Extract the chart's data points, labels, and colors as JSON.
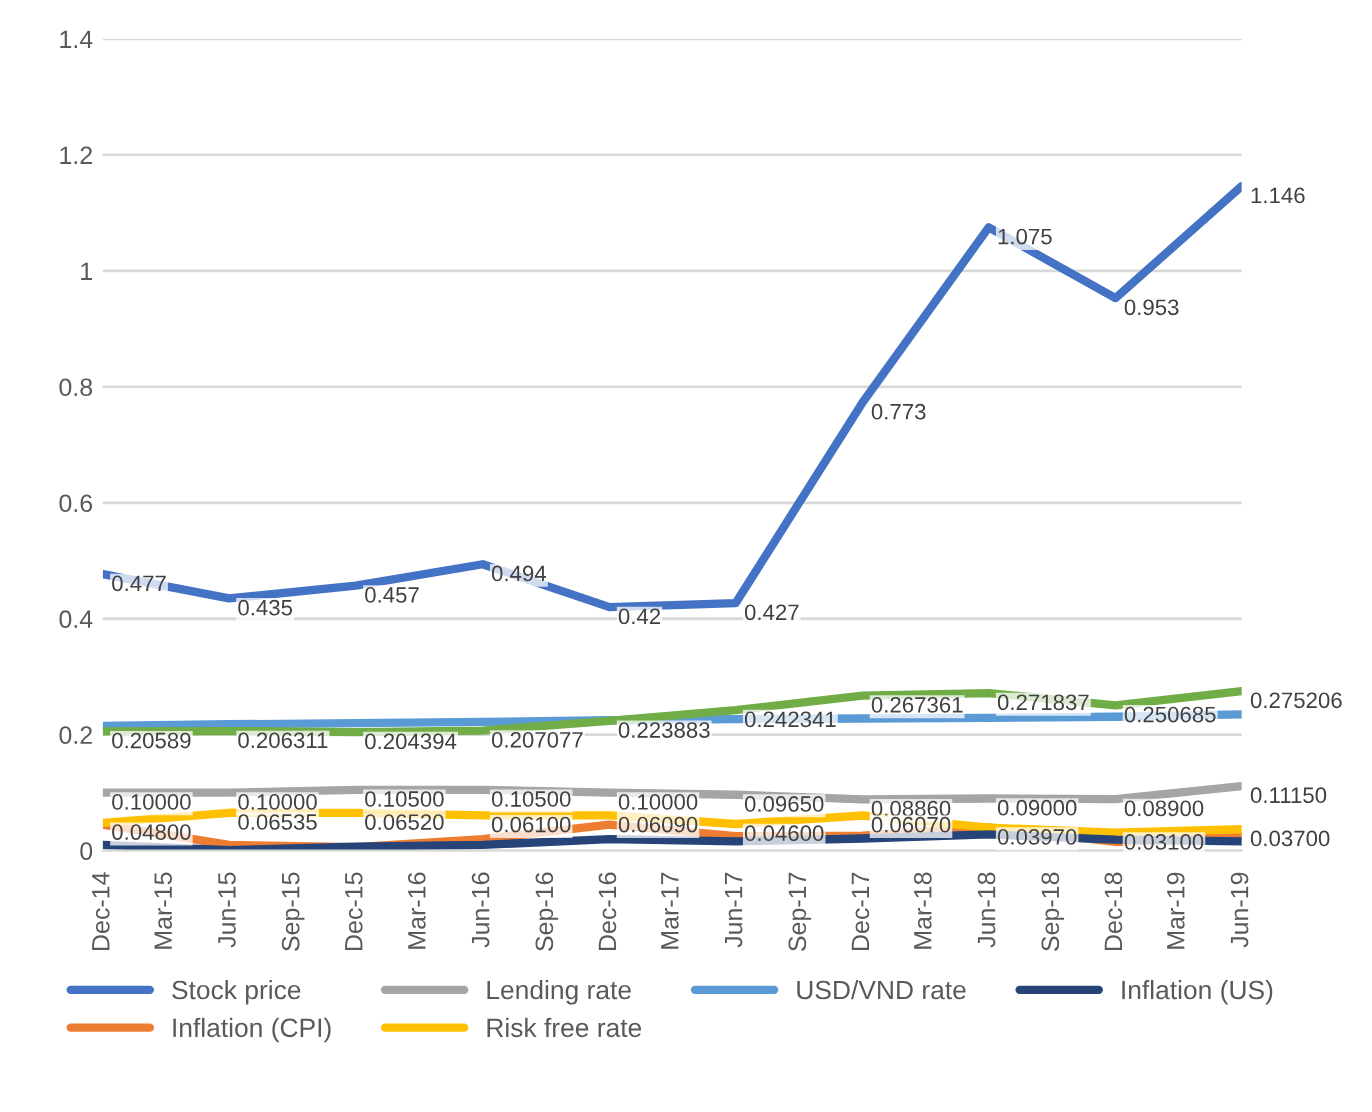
{
  "chart_data": {
    "type": "line",
    "xlim": [
      "2014-12",
      "2019-06"
    ],
    "xticks": [
      {
        "value": "2014-12",
        "label": "Dec-14"
      },
      {
        "value": "2015-03",
        "label": "Mar-15"
      },
      {
        "value": "2015-06",
        "label": "Jun-15"
      },
      {
        "value": "2015-09",
        "label": "Sep-15"
      },
      {
        "value": "2015-12",
        "label": "Dec-15"
      },
      {
        "value": "2016-03",
        "label": "Mar-16"
      },
      {
        "value": "2016-06",
        "label": "Jun-16"
      },
      {
        "value": "2016-09",
        "label": "Sep-16"
      },
      {
        "value": "2016-12",
        "label": "Dec-16"
      },
      {
        "value": "2017-03",
        "label": "Mar-17"
      },
      {
        "value": "2017-06",
        "label": "Jun-17"
      },
      {
        "value": "2017-09",
        "label": "Sep-17"
      },
      {
        "value": "2017-12",
        "label": "Dec-17"
      },
      {
        "value": "2018-03",
        "label": "Mar-18"
      },
      {
        "value": "2018-06",
        "label": "Jun-18"
      },
      {
        "value": "2018-09",
        "label": "Sep-18"
      },
      {
        "value": "2018-12",
        "label": "Dec-18"
      },
      {
        "value": "2019-03",
        "label": "Mar-19"
      },
      {
        "value": "2019-06",
        "label": "Jun-19"
      }
    ],
    "x": [
      "2014-12",
      "2015-06",
      "2015-12",
      "2016-06",
      "2016-12",
      "2017-06",
      "2017-12",
      "2018-06",
      "2018-12",
      "2019-06"
    ],
    "ylim": [
      0,
      1.4
    ],
    "yticks": [
      0,
      0.2,
      0.4,
      0.6,
      0.8,
      1,
      1.2,
      1.4
    ],
    "grid": "y",
    "legend": "bottom",
    "marker": "none",
    "line_style": "solid",
    "series": [
      {
        "name": "Stock price",
        "color": "#4472c4",
        "values": [
          0.477,
          0.435,
          0.457,
          0.494,
          0.42,
          0.427,
          0.773,
          1.075,
          0.953,
          1.146
        ],
        "value_labels": [
          "0.477",
          "0.435",
          "0.457",
          "0.494",
          "0.42",
          "0.427",
          "0.773",
          "1.075",
          "0.953",
          "1.146"
        ]
      },
      {
        "name": "Inflation (CPI)",
        "color": "#ed7d31",
        "values": [
          0.045,
          0.01,
          0.006,
          0.02,
          0.045,
          0.025,
          0.026,
          0.04,
          0.015,
          0.025
        ]
      },
      {
        "name": "Lending rate",
        "color": "#a5a5a5",
        "values": [
          0.1,
          0.1,
          0.105,
          0.105,
          0.1,
          0.0965,
          0.0886,
          0.09,
          0.089,
          0.1115
        ],
        "value_labels": [
          "0.10000",
          "0.10000",
          "0.10500",
          "0.10500",
          "0.10000",
          "0.09650",
          "0.08860",
          "0.09000",
          "0.08900",
          "0.11150"
        ]
      },
      {
        "name": "Risk free rate",
        "color": "#ffc000",
        "values": [
          0.048,
          0.06535,
          0.0652,
          0.061,
          0.0609,
          0.046,
          0.0607,
          0.0397,
          0.031,
          0.037
        ],
        "value_labels": [
          "0.04800",
          "0.06535",
          "0.06520",
          "0.06100",
          "0.06090",
          "0.04600",
          "0.06070",
          "0.03970",
          "0.03100",
          "0.03700"
        ]
      },
      {
        "name": "USD/VND rate",
        "color": "#5b9bd5",
        "values": [
          0.215,
          0.218,
          0.22,
          0.222,
          0.225,
          0.227,
          0.228,
          0.229,
          0.231,
          0.235
        ]
      },
      {
        "color": "#70ad47",
        "values": [
          0.20589,
          0.206311,
          0.204394,
          0.207077,
          0.223883,
          0.242341,
          0.267361,
          0.271837,
          0.250685,
          0.275206
        ],
        "value_labels": [
          "0.20589",
          "0.206311",
          "0.204394",
          "0.207077",
          "0.223883",
          "0.242341",
          "0.267361",
          "0.271837",
          "0.250685",
          "0.275206"
        ]
      },
      {
        "name": "Inflation (US)",
        "color": "#264478",
        "values": [
          0.01,
          0.001,
          0.007,
          0.01,
          0.02,
          0.016,
          0.021,
          0.028,
          0.019,
          0.016
        ]
      }
    ]
  }
}
